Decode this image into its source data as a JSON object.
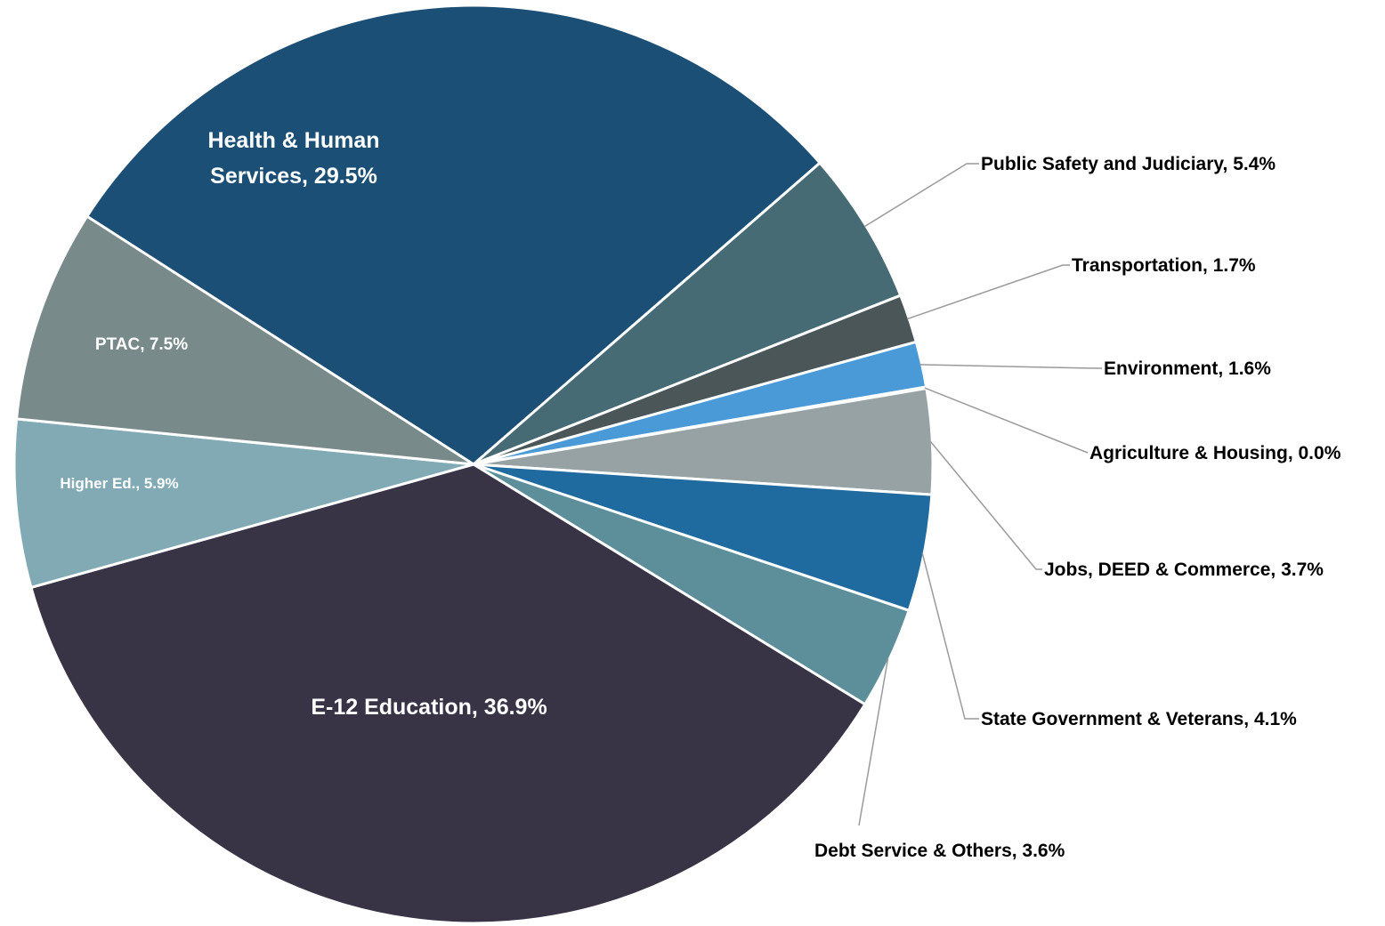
{
  "chart_data": {
    "type": "pie",
    "title": "",
    "slices": [
      {
        "label": "Health & Human Services",
        "display": [
          "Health & Human",
          "Services, 29.5%"
        ],
        "value": 29.5,
        "color": "#1b4f75"
      },
      {
        "label": "Public Safety and Judiciary",
        "display": [
          "Public Safety and Judiciary, 5.4%"
        ],
        "value": 5.4,
        "color": "#466b74"
      },
      {
        "label": "Transportation",
        "display": [
          "Transportation, 1.7%"
        ],
        "value": 1.7,
        "color": "#4b5659"
      },
      {
        "label": "Environment",
        "display": [
          "Environment, 1.6%"
        ],
        "value": 1.6,
        "color": "#4a9ad8"
      },
      {
        "label": "Agriculture & Housing",
        "display": [
          "Agriculture & Housing, 0.0%"
        ],
        "value": 0.05,
        "color": "#1d7a9e"
      },
      {
        "label": "Jobs, DEED & Commerce",
        "display": [
          "Jobs, DEED & Commerce, 3.7%"
        ],
        "value": 3.7,
        "color": "#96a2a3"
      },
      {
        "label": "State Government & Veterans",
        "display": [
          "State Government & Veterans, 4.1%"
        ],
        "value": 4.1,
        "color": "#1f6a9e"
      },
      {
        "label": "Debt Service & Others",
        "display": [
          "Debt Service & Others, 3.6%"
        ],
        "value": 3.6,
        "color": "#5d8f9b"
      },
      {
        "label": "E-12 Education",
        "display": [
          "E-12 Education, 36.9%"
        ],
        "value": 36.9,
        "color": "#383446"
      },
      {
        "label": "Higher Ed.",
        "display": [
          "Higher Ed., 5.9%"
        ],
        "value": 5.9,
        "color": "#82aab4"
      },
      {
        "label": "PTAC",
        "display": [
          "PTAC, 7.5%"
        ],
        "value": 7.5,
        "color": "#798a8b"
      }
    ]
  }
}
